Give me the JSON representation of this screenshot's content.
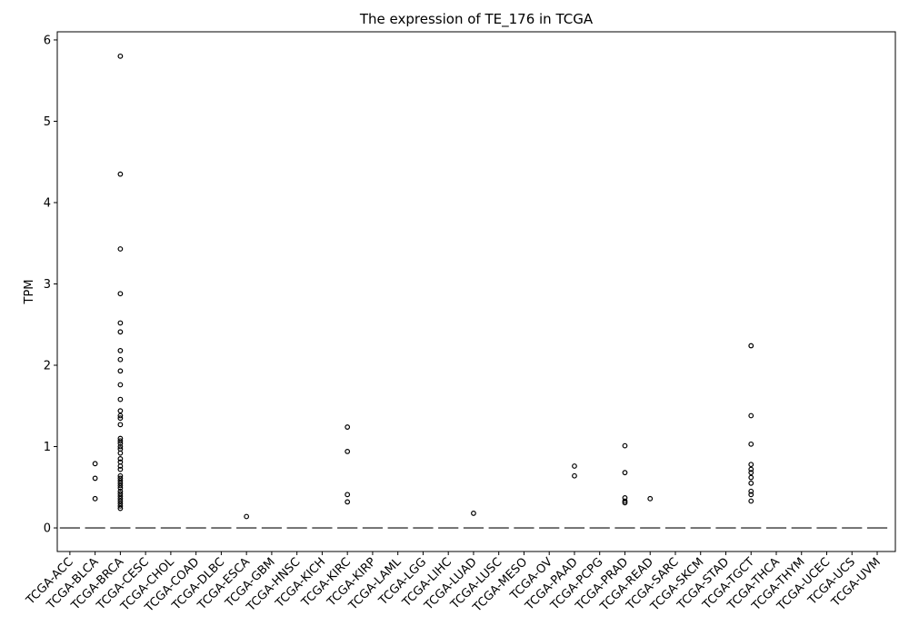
{
  "chart_data": {
    "type": "box",
    "title": "The expression of TE_176 in TCGA",
    "xlabel": "",
    "ylabel": "TPM",
    "ylim": [
      -0.29,
      6.1
    ],
    "yticks": [
      0,
      1,
      2,
      3,
      4,
      5,
      6
    ],
    "grid": false,
    "legend": "none",
    "categories": [
      "TCGA-ACC",
      "TCGA-BLCA",
      "TCGA-BRCA",
      "TCGA-CESC",
      "TCGA-CHOL",
      "TCGA-COAD",
      "TCGA-DLBC",
      "TCGA-ESCA",
      "TCGA-GBM",
      "TCGA-HNSC",
      "TCGA-KICH",
      "TCGA-KIRC",
      "TCGA-KIRP",
      "TCGA-LAML",
      "TCGA-LGG",
      "TCGA-LIHC",
      "TCGA-LUAD",
      "TCGA-LUSC",
      "TCGA-MESO",
      "TCGA-OV",
      "TCGA-PAAD",
      "TCGA-PCPG",
      "TCGA-PRAD",
      "TCGA-READ",
      "TCGA-SARC",
      "TCGA-SKCM",
      "TCGA-STAD",
      "TCGA-TGCT",
      "TCGA-THCA",
      "TCGA-THYM",
      "TCGA-UCEC",
      "TCGA-UCS",
      "TCGA-UVM"
    ],
    "medians": [
      0,
      0,
      0,
      0,
      0,
      0,
      0,
      0,
      0,
      0,
      0,
      0,
      0,
      0,
      0,
      0,
      0,
      0,
      0,
      0,
      0,
      0,
      0,
      0,
      0,
      0,
      0,
      0,
      0,
      0,
      0,
      0,
      0
    ],
    "outliers": [
      [],
      [
        0.79,
        0.61,
        0.36
      ],
      [
        5.8,
        4.35,
        3.43,
        2.88,
        2.52,
        2.41,
        2.18,
        2.07,
        1.93,
        1.76,
        1.58,
        1.44,
        1.38,
        1.35,
        1.27,
        1.1,
        1.07,
        1.04,
        1.0,
        0.97,
        0.92,
        0.85,
        0.81,
        0.76,
        0.72,
        0.64,
        0.61,
        0.58,
        0.55,
        0.52,
        0.49,
        0.45,
        0.42,
        0.39,
        0.36,
        0.33,
        0.3,
        0.27,
        0.24
      ],
      [],
      [],
      [],
      [],
      [
        0.14
      ],
      [],
      [],
      [],
      [
        1.24,
        0.94,
        0.41,
        0.32
      ],
      [],
      [],
      [],
      [],
      [
        0.18
      ],
      [],
      [],
      [],
      [
        0.76,
        0.64
      ],
      [],
      [
        1.01,
        0.68,
        0.37,
        0.33,
        0.31
      ],
      [
        0.36
      ],
      [],
      [],
      [],
      [
        2.24,
        1.38,
        1.03,
        0.78,
        0.72,
        0.68,
        0.62,
        0.55,
        0.45,
        0.41,
        0.33
      ],
      [],
      [],
      [],
      [],
      []
    ]
  }
}
